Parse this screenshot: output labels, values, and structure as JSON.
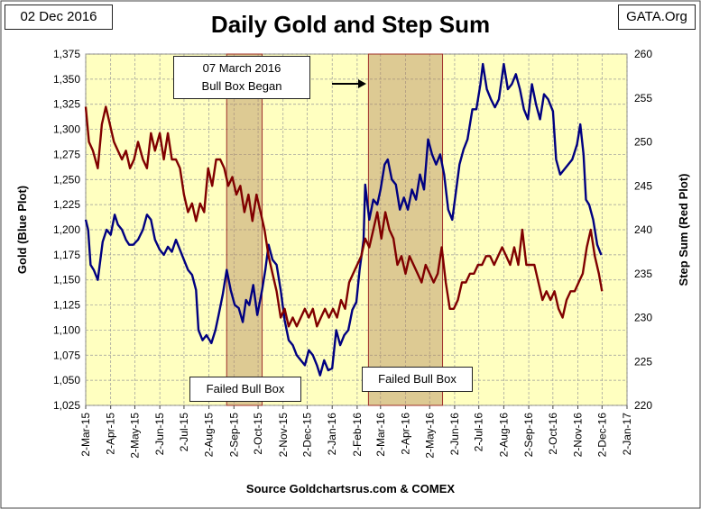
{
  "header": {
    "date": "02 Dec 2016",
    "source_site": "GATA.Org",
    "title": "Daily Gold and Step Sum"
  },
  "footer": {
    "source": "Source Goldchartsrus.com & COMEX"
  },
  "annotations": {
    "bull_box_line1": "07 March 2016",
    "bull_box_line2": "Bull Box Began",
    "failed_box_1": "Failed Bull Box",
    "failed_box_2": "Failed Bull Box"
  },
  "chart_data": {
    "type": "line",
    "xlabel": "",
    "ylabel": "Gold   (Blue Plot)",
    "y2label": "Step Sum   (Red Plot)",
    "x_ticks": [
      "2-Mar-15",
      "2-Apr-15",
      "2-May-15",
      "2-Jun-15",
      "2-Jul-15",
      "2-Aug-15",
      "2-Sep-15",
      "2-Oct-15",
      "2-Nov-15",
      "2-Dec-15",
      "2-Jan-16",
      "2-Feb-16",
      "2-Mar-16",
      "2-Apr-16",
      "2-May-16",
      "2-Jun-16",
      "2-Jul-16",
      "2-Aug-16",
      "2-Sep-16",
      "2-Oct-16",
      "2-Nov-16",
      "2-Dec-16",
      "2-Jan-17"
    ],
    "ylim": [
      1025,
      1375
    ],
    "y_ticks": [
      "1,025",
      "1,050",
      "1,075",
      "1,100",
      "1,125",
      "1,150",
      "1,175",
      "1,200",
      "1,225",
      "1,250",
      "1,275",
      "1,300",
      "1,325",
      "1,350",
      "1,375"
    ],
    "y2lim": [
      220,
      260
    ],
    "y2_ticks": [
      "220",
      "225",
      "230",
      "235",
      "240",
      "245",
      "250",
      "255",
      "260"
    ],
    "grid": true,
    "shaded_regions": [
      {
        "start": "2015-08-24",
        "end": "2015-10-07"
      },
      {
        "start": "2016-02-16",
        "end": "2016-05-18"
      }
    ],
    "series": [
      {
        "axis": "left",
        "color": "#000080",
        "points": [
          [
            "2015-03-02",
            1210
          ],
          [
            "2015-03-05",
            1200
          ],
          [
            "2015-03-08",
            1165
          ],
          [
            "2015-03-12",
            1160
          ],
          [
            "2015-03-17",
            1150
          ],
          [
            "2015-03-23",
            1188
          ],
          [
            "2015-03-28",
            1200
          ],
          [
            "2015-04-02",
            1195
          ],
          [
            "2015-04-07",
            1215
          ],
          [
            "2015-04-11",
            1205
          ],
          [
            "2015-04-16",
            1200
          ],
          [
            "2015-04-21",
            1190
          ],
          [
            "2015-04-25",
            1185
          ],
          [
            "2015-04-30",
            1185
          ],
          [
            "2015-05-06",
            1190
          ],
          [
            "2015-05-12",
            1200
          ],
          [
            "2015-05-17",
            1215
          ],
          [
            "2015-05-22",
            1210
          ],
          [
            "2015-05-27",
            1190
          ],
          [
            "2015-06-02",
            1180
          ],
          [
            "2015-06-07",
            1175
          ],
          [
            "2015-06-12",
            1183
          ],
          [
            "2015-06-17",
            1178
          ],
          [
            "2015-06-22",
            1190
          ],
          [
            "2015-06-27",
            1180
          ],
          [
            "2015-07-02",
            1170
          ],
          [
            "2015-07-07",
            1160
          ],
          [
            "2015-07-12",
            1155
          ],
          [
            "2015-07-17",
            1140
          ],
          [
            "2015-07-20",
            1100
          ],
          [
            "2015-07-25",
            1090
          ],
          [
            "2015-07-30",
            1095
          ],
          [
            "2015-08-05",
            1087
          ],
          [
            "2015-08-10",
            1100
          ],
          [
            "2015-08-14",
            1115
          ],
          [
            "2015-08-19",
            1135
          ],
          [
            "2015-08-24",
            1160
          ],
          [
            "2015-08-29",
            1140
          ],
          [
            "2015-09-03",
            1125
          ],
          [
            "2015-09-08",
            1122
          ],
          [
            "2015-09-13",
            1108
          ],
          [
            "2015-09-17",
            1130
          ],
          [
            "2015-09-21",
            1125
          ],
          [
            "2015-09-26",
            1145
          ],
          [
            "2015-10-01",
            1115
          ],
          [
            "2015-10-07",
            1140
          ],
          [
            "2015-10-11",
            1160
          ],
          [
            "2015-10-15",
            1185
          ],
          [
            "2015-10-20",
            1170
          ],
          [
            "2015-10-25",
            1165
          ],
          [
            "2015-10-30",
            1140
          ],
          [
            "2015-11-04",
            1110
          ],
          [
            "2015-11-09",
            1090
          ],
          [
            "2015-11-14",
            1085
          ],
          [
            "2015-11-19",
            1075
          ],
          [
            "2015-11-24",
            1070
          ],
          [
            "2015-11-29",
            1065
          ],
          [
            "2015-12-04",
            1080
          ],
          [
            "2015-12-09",
            1075
          ],
          [
            "2015-12-14",
            1065
          ],
          [
            "2015-12-18",
            1055
          ],
          [
            "2015-12-23",
            1070
          ],
          [
            "2015-12-28",
            1060
          ],
          [
            "2016-01-02",
            1062
          ],
          [
            "2016-01-07",
            1100
          ],
          [
            "2016-01-12",
            1085
          ],
          [
            "2016-01-17",
            1095
          ],
          [
            "2016-01-22",
            1100
          ],
          [
            "2016-01-27",
            1120
          ],
          [
            "2016-02-01",
            1128
          ],
          [
            "2016-02-05",
            1160
          ],
          [
            "2016-02-10",
            1190
          ],
          [
            "2016-02-12",
            1245
          ],
          [
            "2016-02-17",
            1210
          ],
          [
            "2016-02-22",
            1230
          ],
          [
            "2016-02-27",
            1225
          ],
          [
            "2016-03-02",
            1240
          ],
          [
            "2016-03-07",
            1265
          ],
          [
            "2016-03-11",
            1270
          ],
          [
            "2016-03-16",
            1250
          ],
          [
            "2016-03-21",
            1245
          ],
          [
            "2016-03-26",
            1220
          ],
          [
            "2016-03-31",
            1232
          ],
          [
            "2016-04-05",
            1220
          ],
          [
            "2016-04-10",
            1240
          ],
          [
            "2016-04-15",
            1230
          ],
          [
            "2016-04-20",
            1255
          ],
          [
            "2016-04-25",
            1240
          ],
          [
            "2016-04-30",
            1290
          ],
          [
            "2016-05-05",
            1275
          ],
          [
            "2016-05-10",
            1265
          ],
          [
            "2016-05-15",
            1275
          ],
          [
            "2016-05-20",
            1255
          ],
          [
            "2016-05-25",
            1220
          ],
          [
            "2016-05-30",
            1210
          ],
          [
            "2016-06-04",
            1240
          ],
          [
            "2016-06-08",
            1265
          ],
          [
            "2016-06-13",
            1280
          ],
          [
            "2016-06-18",
            1290
          ],
          [
            "2016-06-24",
            1320
          ],
          [
            "2016-06-29",
            1320
          ],
          [
            "2016-07-04",
            1345
          ],
          [
            "2016-07-07",
            1365
          ],
          [
            "2016-07-12",
            1340
          ],
          [
            "2016-07-17",
            1330
          ],
          [
            "2016-07-22",
            1322
          ],
          [
            "2016-07-27",
            1330
          ],
          [
            "2016-08-02",
            1365
          ],
          [
            "2016-08-07",
            1340
          ],
          [
            "2016-08-12",
            1345
          ],
          [
            "2016-08-17",
            1355
          ],
          [
            "2016-08-22",
            1340
          ],
          [
            "2016-08-27",
            1320
          ],
          [
            "2016-09-01",
            1310
          ],
          [
            "2016-09-06",
            1345
          ],
          [
            "2016-09-11",
            1325
          ],
          [
            "2016-09-16",
            1310
          ],
          [
            "2016-09-21",
            1335
          ],
          [
            "2016-09-26",
            1330
          ],
          [
            "2016-10-02",
            1318
          ],
          [
            "2016-10-06",
            1270
          ],
          [
            "2016-10-11",
            1255
          ],
          [
            "2016-10-16",
            1260
          ],
          [
            "2016-10-21",
            1265
          ],
          [
            "2016-10-26",
            1270
          ],
          [
            "2016-11-01",
            1285
          ],
          [
            "2016-11-05",
            1305
          ],
          [
            "2016-11-09",
            1275
          ],
          [
            "2016-11-12",
            1230
          ],
          [
            "2016-11-16",
            1225
          ],
          [
            "2016-11-21",
            1210
          ],
          [
            "2016-11-26",
            1185
          ],
          [
            "2016-12-01",
            1175
          ]
        ]
      },
      {
        "axis": "right",
        "color": "#800000",
        "points": [
          [
            "2015-03-02",
            254
          ],
          [
            "2015-03-06",
            250
          ],
          [
            "2015-03-11",
            249
          ],
          [
            "2015-03-17",
            247
          ],
          [
            "2015-03-22",
            252
          ],
          [
            "2015-03-27",
            254
          ],
          [
            "2015-04-01",
            252
          ],
          [
            "2015-04-06",
            250
          ],
          [
            "2015-04-11",
            249
          ],
          [
            "2015-04-16",
            248
          ],
          [
            "2015-04-21",
            249
          ],
          [
            "2015-04-26",
            247
          ],
          [
            "2015-05-01",
            248
          ],
          [
            "2015-05-06",
            250
          ],
          [
            "2015-05-12",
            248
          ],
          [
            "2015-05-17",
            247
          ],
          [
            "2015-05-22",
            251
          ],
          [
            "2015-05-27",
            249
          ],
          [
            "2015-06-02",
            251
          ],
          [
            "2015-06-07",
            248
          ],
          [
            "2015-06-12",
            251
          ],
          [
            "2015-06-17",
            248
          ],
          [
            "2015-06-22",
            248
          ],
          [
            "2015-06-27",
            247
          ],
          [
            "2015-07-02",
            244
          ],
          [
            "2015-07-07",
            242
          ],
          [
            "2015-07-12",
            243
          ],
          [
            "2015-07-17",
            241
          ],
          [
            "2015-07-22",
            243
          ],
          [
            "2015-07-27",
            242
          ],
          [
            "2015-08-01",
            247
          ],
          [
            "2015-08-06",
            245
          ],
          [
            "2015-08-11",
            248
          ],
          [
            "2015-08-16",
            248
          ],
          [
            "2015-08-21",
            247
          ],
          [
            "2015-08-26",
            245
          ],
          [
            "2015-08-31",
            246
          ],
          [
            "2015-09-05",
            244
          ],
          [
            "2015-09-10",
            245
          ],
          [
            "2015-09-15",
            242
          ],
          [
            "2015-09-20",
            244
          ],
          [
            "2015-09-25",
            241
          ],
          [
            "2015-09-30",
            244
          ],
          [
            "2015-10-05",
            242
          ],
          [
            "2015-10-10",
            240
          ],
          [
            "2015-10-15",
            237
          ],
          [
            "2015-10-20",
            235
          ],
          [
            "2015-10-25",
            233
          ],
          [
            "2015-10-30",
            230
          ],
          [
            "2015-11-04",
            231
          ],
          [
            "2015-11-09",
            229
          ],
          [
            "2015-11-14",
            230
          ],
          [
            "2015-11-19",
            229
          ],
          [
            "2015-11-24",
            230
          ],
          [
            "2015-11-29",
            231
          ],
          [
            "2015-12-04",
            230
          ],
          [
            "2015-12-09",
            231
          ],
          [
            "2015-12-14",
            229
          ],
          [
            "2015-12-19",
            230
          ],
          [
            "2015-12-24",
            231
          ],
          [
            "2015-12-29",
            230
          ],
          [
            "2016-01-03",
            231
          ],
          [
            "2016-01-08",
            230
          ],
          [
            "2016-01-13",
            232
          ],
          [
            "2016-01-18",
            231
          ],
          [
            "2016-01-23",
            234
          ],
          [
            "2016-01-28",
            235
          ],
          [
            "2016-02-02",
            236
          ],
          [
            "2016-02-07",
            237
          ],
          [
            "2016-02-12",
            239
          ],
          [
            "2016-02-17",
            238
          ],
          [
            "2016-02-22",
            240
          ],
          [
            "2016-02-27",
            242
          ],
          [
            "2016-03-03",
            239
          ],
          [
            "2016-03-08",
            242
          ],
          [
            "2016-03-13",
            240
          ],
          [
            "2016-03-18",
            239
          ],
          [
            "2016-03-23",
            236
          ],
          [
            "2016-03-28",
            237
          ],
          [
            "2016-04-02",
            235
          ],
          [
            "2016-04-07",
            237
          ],
          [
            "2016-04-12",
            236
          ],
          [
            "2016-04-17",
            235
          ],
          [
            "2016-04-22",
            234
          ],
          [
            "2016-04-27",
            236
          ],
          [
            "2016-05-02",
            235
          ],
          [
            "2016-05-07",
            234
          ],
          [
            "2016-05-12",
            235
          ],
          [
            "2016-05-17",
            238
          ],
          [
            "2016-05-22",
            234
          ],
          [
            "2016-05-27",
            231
          ],
          [
            "2016-06-01",
            231
          ],
          [
            "2016-06-06",
            232
          ],
          [
            "2016-06-11",
            234
          ],
          [
            "2016-06-16",
            234
          ],
          [
            "2016-06-21",
            235
          ],
          [
            "2016-06-26",
            235
          ],
          [
            "2016-07-01",
            236
          ],
          [
            "2016-07-06",
            236
          ],
          [
            "2016-07-11",
            237
          ],
          [
            "2016-07-16",
            237
          ],
          [
            "2016-07-21",
            236
          ],
          [
            "2016-07-26",
            237
          ],
          [
            "2016-07-31",
            238
          ],
          [
            "2016-08-05",
            237
          ],
          [
            "2016-08-10",
            236
          ],
          [
            "2016-08-15",
            238
          ],
          [
            "2016-08-20",
            236
          ],
          [
            "2016-08-25",
            240
          ],
          [
            "2016-08-30",
            236
          ],
          [
            "2016-09-04",
            236
          ],
          [
            "2016-09-09",
            236
          ],
          [
            "2016-09-14",
            234
          ],
          [
            "2016-09-19",
            232
          ],
          [
            "2016-09-24",
            233
          ],
          [
            "2016-09-29",
            232
          ],
          [
            "2016-10-04",
            233
          ],
          [
            "2016-10-09",
            231
          ],
          [
            "2016-10-14",
            230
          ],
          [
            "2016-10-19",
            232
          ],
          [
            "2016-10-24",
            233
          ],
          [
            "2016-10-29",
            233
          ],
          [
            "2016-11-03",
            234
          ],
          [
            "2016-11-08",
            235
          ],
          [
            "2016-11-13",
            238
          ],
          [
            "2016-11-18",
            240
          ],
          [
            "2016-11-23",
            237
          ],
          [
            "2016-11-28",
            235
          ],
          [
            "2016-12-02",
            233
          ]
        ]
      }
    ]
  }
}
